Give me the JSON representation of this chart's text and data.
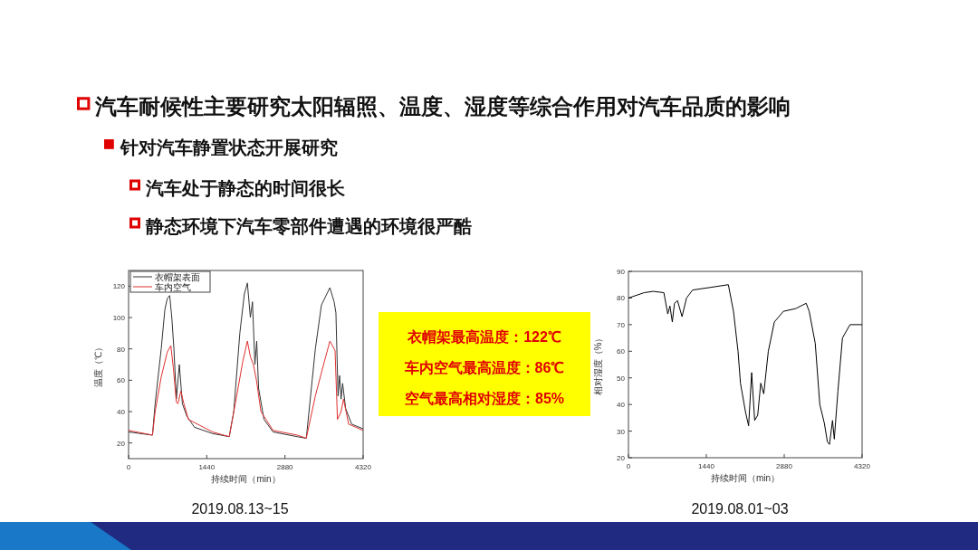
{
  "chart_data": [
    {
      "type": "line",
      "xlabel": "持续时间（min）",
      "ylabel": "温度（℃）",
      "xlim": [
        0,
        4320
      ],
      "ylim": [
        10,
        130
      ],
      "xticks": [
        0,
        1440,
        2880,
        4320
      ],
      "yticks": [
        20,
        40,
        60,
        80,
        100,
        120
      ],
      "legend": "top left",
      "annotations": [
        "汽车耐候性主要研究太阳辐照、温度、湿度等综合作用对汽车品质的影响",
        "针对汽车静置状态开展研究",
        "汽车处于静态的时间很长",
        "静态环境下汽车零部件遭遇的环境很严酷",
        "2019.08.13~15"
      ],
      "series": [
        {
          "name": "衣帽架表面",
          "color": "#333333",
          "x": [
            0,
            440,
            489,
            601,
            668,
            712,
            757,
            796,
            835,
            880,
            935,
            991,
            1075,
            1214,
            1548,
            1854,
            1937,
            2049,
            2132,
            2188,
            2243,
            2282,
            2327,
            2360,
            2394,
            2494,
            2661,
            3106,
            3273,
            3440,
            3552,
            3708,
            3786,
            3819,
            3858,
            3886,
            3914,
            3942,
            3998,
            4109,
            4320
          ],
          "values": [
            27,
            25,
            45,
            80,
            105,
            112,
            114,
            100,
            80,
            48,
            70,
            45,
            37,
            30,
            26,
            24,
            40,
            90,
            115,
            122,
            100,
            110,
            70,
            85,
            55,
            35,
            27,
            24,
            23,
            80,
            108,
            119,
            110,
            103,
            50,
            63,
            48,
            58,
            42,
            32,
            29
          ]
        },
        {
          "name": "车内空气",
          "color": "#e03030",
          "x": [
            0,
            440,
            489,
            601,
            712,
            779,
            824,
            880,
            908,
            963,
            1019,
            1102,
            1548,
            1854,
            1965,
            2104,
            2188,
            2243,
            2299,
            2355,
            2438,
            2661,
            3106,
            3273,
            3440,
            3607,
            3708,
            3803,
            3847,
            3914,
            3959,
            4053,
            4320
          ],
          "values": [
            28,
            25,
            40,
            62,
            78,
            82,
            68,
            46,
            45,
            53,
            45,
            35,
            27,
            24,
            45,
            72,
            85,
            75,
            70,
            60,
            40,
            28,
            25,
            23,
            50,
            72,
            85,
            79,
            35,
            40,
            48,
            32,
            28
          ]
        }
      ]
    },
    {
      "type": "other",
      "annotations": [
        "衣帽架最高温度：122℃",
        "车内空气最高温度：86℃",
        "空气最高相对湿度：85%"
      ]
    },
    {
      "type": "line",
      "xlabel": "持续时间（min）",
      "ylabel": "相对湿度（%）",
      "xlim": [
        0,
        4320
      ],
      "ylim": [
        20,
        90
      ],
      "xticks": [
        0,
        1440,
        2880,
        4320
      ],
      "yticks": [
        20,
        30,
        40,
        50,
        60,
        70,
        80,
        90
      ],
      "annotations": [
        "2019.08.01~03"
      ],
      "series": [
        {
          "color": "#000000",
          "x": [
            0,
            291,
            459,
            655,
            727,
            767,
            811,
            851,
            907,
            991,
            1074,
            1186,
            1522,
            1847,
            1942,
            2026,
            2071,
            2166,
            2222,
            2278,
            2334,
            2390,
            2446,
            2502,
            2586,
            2698,
            2866,
            3090,
            3286,
            3342,
            3454,
            3538,
            3622,
            3678,
            3717,
            3773,
            3806,
            3873,
            3957,
            4097,
            4320
          ],
          "values": [
            80,
            82,
            82.5,
            82,
            74,
            77,
            71,
            78,
            79,
            73,
            80,
            83,
            84,
            85,
            75,
            60,
            48,
            37,
            32,
            52,
            34,
            36,
            48,
            44,
            60,
            71,
            75,
            76,
            78,
            75,
            63,
            40,
            33,
            26,
            25,
            34,
            27,
            45,
            65,
            70,
            70
          ]
        }
      ]
    }
  ]
}
